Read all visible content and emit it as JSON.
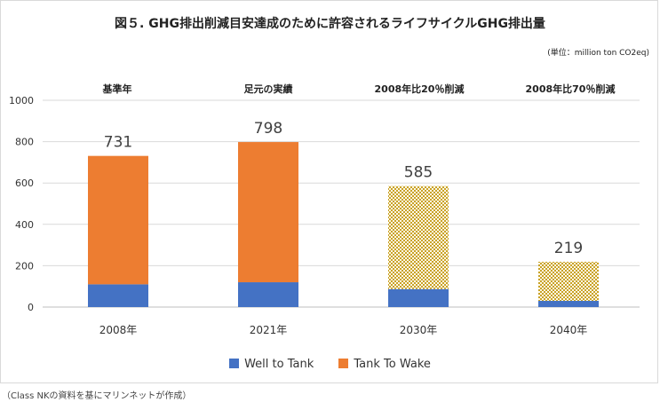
{
  "title": "図５. GHG排出削減目安達成のために許容されるライフサイクルGHG排出量",
  "unit": "(単位：million ton CO2eq)",
  "source_note": "（Class NKの資料を基にマリンネットが作成）",
  "legend": {
    "wtt": "Well to Tank",
    "ttw": "Tank To Wake"
  },
  "colors": {
    "wtt": "#4472c4",
    "ttw": "#ed7d31",
    "pattern": "#c9a227",
    "grid": "#d9d9d9"
  },
  "chart_data": {
    "type": "bar",
    "stacked": true,
    "categories": [
      "2008年",
      "2021年",
      "2030年",
      "2040年"
    ],
    "group_labels": [
      "基準年",
      "足元の実績",
      "2008年比20％削減",
      "2008年比70％削減"
    ],
    "series": [
      {
        "name": "Well to Tank",
        "values": [
          110,
          120,
          87,
          30
        ]
      },
      {
        "name": "Tank To Wake",
        "values": [
          621,
          678,
          498,
          189
        ]
      }
    ],
    "totals": [
      731,
      798,
      585,
      219
    ],
    "patterned_categories": [
      "2030年",
      "2040年"
    ],
    "ylim": [
      0,
      1000
    ],
    "yticks": [
      0,
      200,
      400,
      600,
      800,
      1000
    ],
    "grid": true,
    "legend_position": "bottom"
  }
}
